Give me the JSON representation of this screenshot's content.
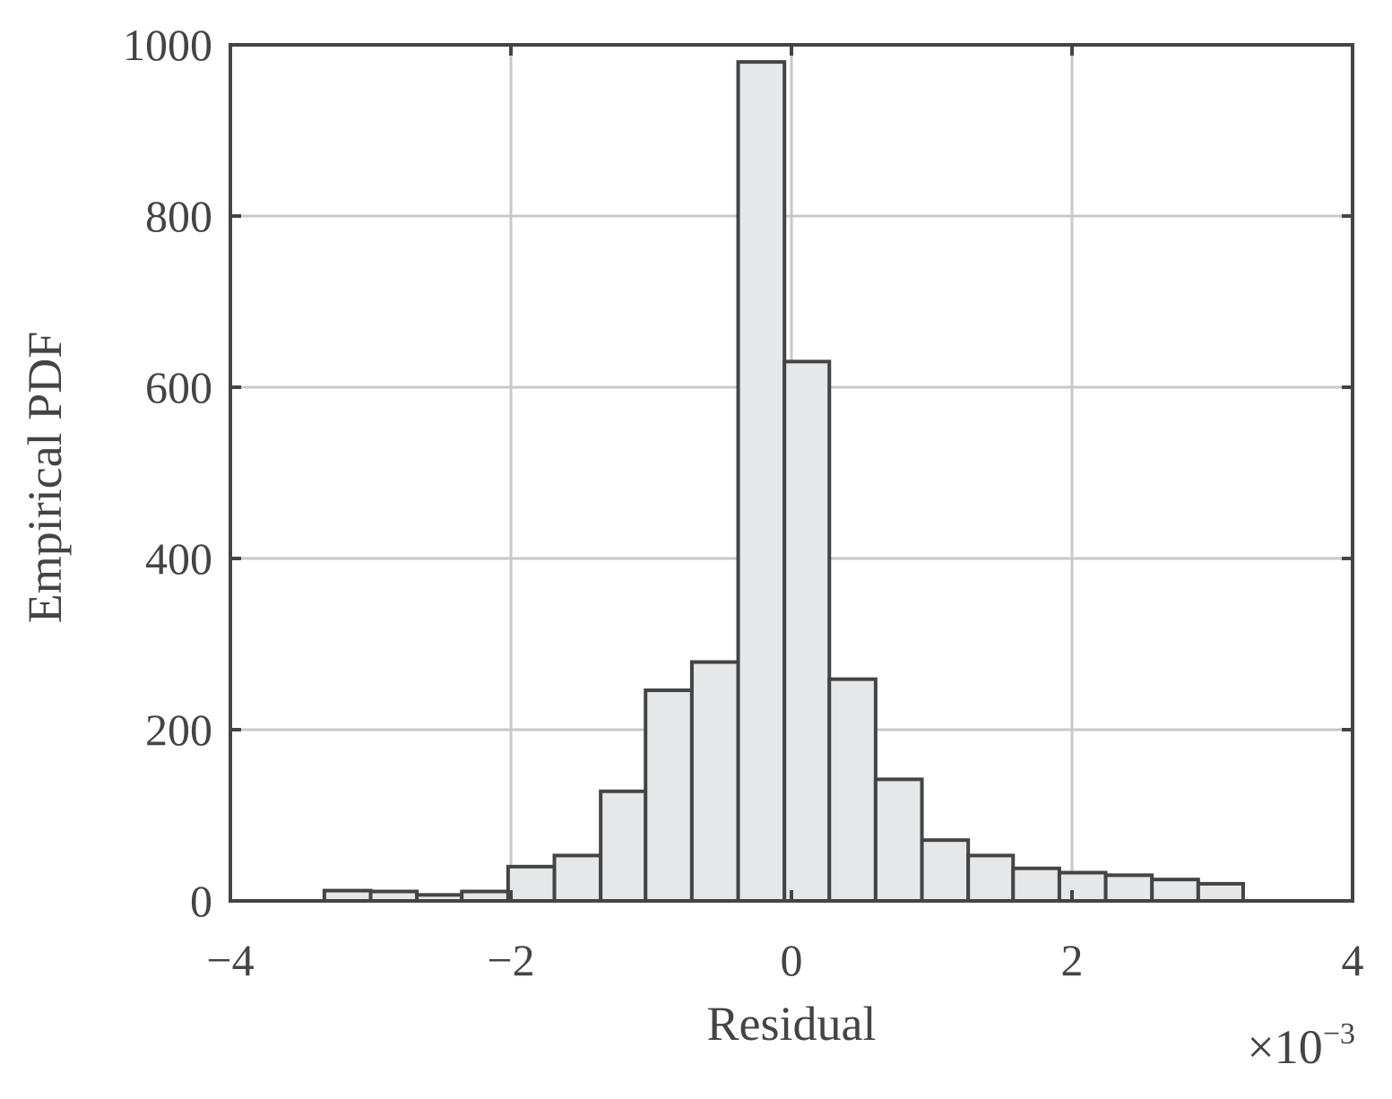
{
  "chart_data": {
    "type": "bar",
    "xlabel": "Residual",
    "ylabel": "Empirical PDF",
    "x_exponent_label": "×10",
    "x_exponent_power": "−3",
    "xlim": [
      -4,
      4
    ],
    "ylim": [
      0,
      1000
    ],
    "x_ticks": [
      -4,
      -2,
      0,
      2,
      4
    ],
    "x_tick_labels": [
      "−4",
      "−2",
      "0",
      "2",
      "4"
    ],
    "y_ticks": [
      0,
      200,
      400,
      600,
      800,
      1000
    ],
    "y_tick_labels": [
      "0",
      "200",
      "400",
      "600",
      "800",
      "1000"
    ],
    "grid": true,
    "bin_edges": [
      -3.33,
      -3.0,
      -2.67,
      -2.35,
      -2.02,
      -1.69,
      -1.36,
      -1.04,
      -0.71,
      -0.38,
      -0.05,
      0.27,
      0.6,
      0.93,
      1.26,
      1.58,
      1.91,
      2.24,
      2.57,
      2.9,
      3.22
    ],
    "values": [
      12,
      11,
      7,
      11,
      40,
      53,
      128,
      246,
      279,
      980,
      630,
      259,
      142,
      71,
      53,
      38,
      33,
      30,
      25,
      20
    ],
    "colors": {
      "bar_fill": "#e6e7e9",
      "bar_edge": "#444444",
      "grid": "#c8c8c8",
      "text": "#444444"
    }
  }
}
